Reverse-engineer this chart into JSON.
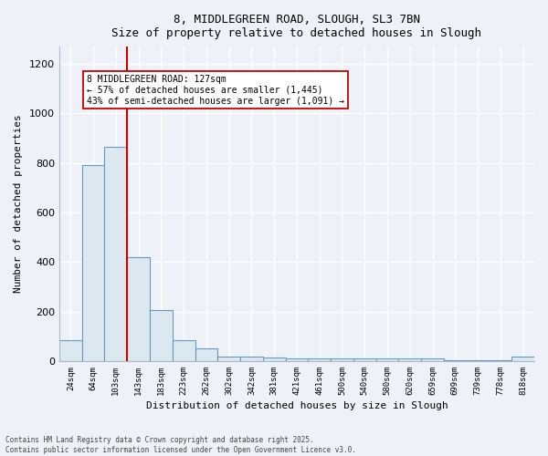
{
  "title1": "8, MIDDLEGREEN ROAD, SLOUGH, SL3 7BN",
  "title2": "Size of property relative to detached houses in Slough",
  "xlabel": "Distribution of detached houses by size in Slough",
  "ylabel": "Number of detached properties",
  "bar_labels": [
    "24sqm",
    "64sqm",
    "103sqm",
    "143sqm",
    "183sqm",
    "223sqm",
    "262sqm",
    "302sqm",
    "342sqm",
    "381sqm",
    "421sqm",
    "461sqm",
    "500sqm",
    "540sqm",
    "580sqm",
    "620sqm",
    "659sqm",
    "699sqm",
    "739sqm",
    "778sqm",
    "818sqm"
  ],
  "bar_values": [
    85,
    790,
    865,
    420,
    205,
    85,
    50,
    20,
    20,
    15,
    10,
    10,
    10,
    10,
    10,
    10,
    10,
    5,
    5,
    5,
    20
  ],
  "bar_color": "#dce8f0",
  "bar_edge_color": "#6699bb",
  "property_line_bin": 2,
  "annotation_text_line1": "8 MIDDLEGREEN ROAD: 127sqm",
  "annotation_text_line2": "← 57% of detached houses are smaller (1,445)",
  "annotation_text_line3": "43% of semi-detached houses are larger (1,091) →",
  "annotation_box_color": "#ffffff",
  "annotation_box_edge": "#cc0000",
  "line_color": "#cc0000",
  "ylim": [
    0,
    1270
  ],
  "yticks": [
    0,
    200,
    400,
    600,
    800,
    1000,
    1200
  ],
  "footer1": "Contains HM Land Registry data © Crown copyright and database right 2025.",
  "footer2": "Contains public sector information licensed under the Open Government Licence v3.0.",
  "bg_color": "#eef2f8",
  "plot_bg_color": "#eef2f8",
  "grid_color": "#ffffff",
  "spine_color": "#aabbcc"
}
